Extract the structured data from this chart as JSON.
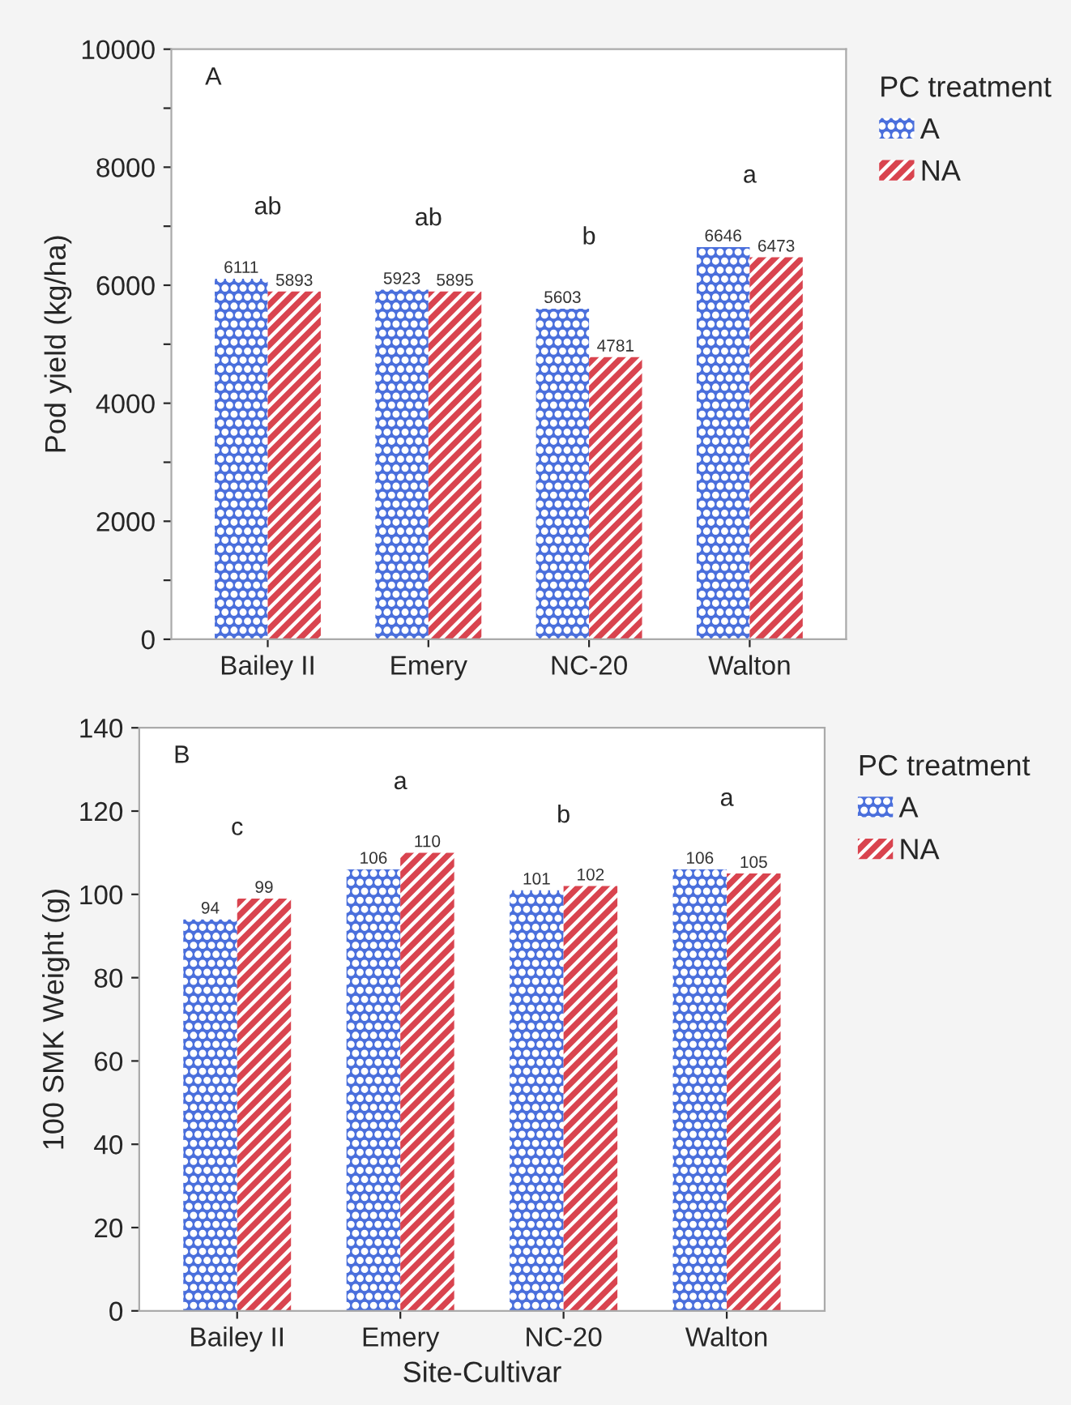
{
  "chart_data": [
    {
      "type": "bar",
      "ylabel": "Pod yield (kg/ha)",
      "legend_title": "PC treatment",
      "categories": [
        "Bailey II",
        "Emery",
        "NC-20",
        "Walton"
      ],
      "series": [
        {
          "name": "A",
          "color": "#4a6fdc",
          "values": [
            6111,
            5923,
            5603,
            6646
          ]
        },
        {
          "name": "NA",
          "color": "#d9444f",
          "values": [
            5893,
            5895,
            4781,
            6473
          ]
        }
      ],
      "ylim": [
        0,
        10000
      ],
      "yticks": [
        0,
        {
          "value": 1000,
          "label": null
        },
        2000,
        {
          "value": 3000,
          "label": null
        },
        4000,
        {
          "value": 5000,
          "label": null
        },
        6000,
        {
          "value": 7000,
          "label": null
        },
        8000,
        {
          "value": 9000,
          "label": null
        },
        10000
      ],
      "data_labels": true,
      "legend": "right",
      "grid": false,
      "annotations": [
        "A",
        "ab",
        "ab",
        "b",
        "a"
      ]
    },
    {
      "type": "bar",
      "xlabel": "Site-Cultivar",
      "ylabel": "100 SMK Weight (g)",
      "legend_title": "PC treatment",
      "categories": [
        "Bailey II",
        "Emery",
        "NC-20",
        "Walton"
      ],
      "series": [
        {
          "name": "A",
          "color": "#4a6fdc",
          "values": [
            94,
            106,
            101,
            106
          ]
        },
        {
          "name": "NA",
          "color": "#d9444f",
          "values": [
            99,
            110,
            102,
            105
          ]
        }
      ],
      "ylim": [
        0,
        140
      ],
      "yticks": [
        0,
        20,
        40,
        60,
        80,
        100,
        120,
        140
      ],
      "data_labels": true,
      "legend": "right",
      "grid": false,
      "annotations": [
        "B",
        "c",
        "a",
        "b",
        "a"
      ]
    }
  ]
}
